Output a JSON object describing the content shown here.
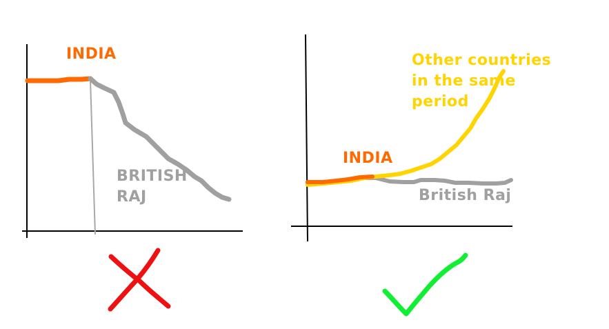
{
  "left_panel": {
    "india_label": "INDIA",
    "british_label_line1": "BRITISH",
    "british_label_line2": "RAJ",
    "mark": "cross-icon"
  },
  "right_panel": {
    "india_label": "INDIA",
    "other_label_line1": "Other countries",
    "other_label_line2": "in the same",
    "other_label_line3": "period",
    "british_label": "British Raj",
    "mark": "checkmark-icon"
  },
  "colors": {
    "india": "#ff6a00",
    "british": "#a0a0a0",
    "other": "#ffd400",
    "cross": "#ee1111",
    "check": "#11ee33",
    "axis": "#000000"
  }
}
